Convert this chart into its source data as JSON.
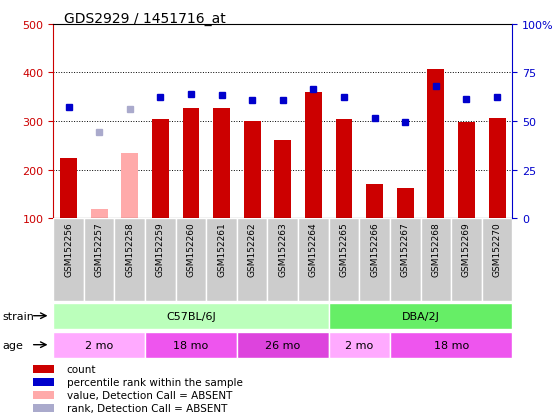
{
  "title": "GDS2929 / 1451716_at",
  "samples": [
    "GSM152256",
    "GSM152257",
    "GSM152258",
    "GSM152259",
    "GSM152260",
    "GSM152261",
    "GSM152262",
    "GSM152263",
    "GSM152264",
    "GSM152265",
    "GSM152266",
    "GSM152267",
    "GSM152268",
    "GSM152269",
    "GSM152270"
  ],
  "counts": [
    224,
    120,
    235,
    304,
    328,
    328,
    300,
    262,
    360,
    304,
    170,
    163,
    408,
    298,
    306
  ],
  "ranks": [
    330,
    278,
    325,
    350,
    356,
    353,
    343,
    343,
    367,
    350,
    306,
    298,
    372,
    345,
    350
  ],
  "absent": [
    false,
    true,
    true,
    false,
    false,
    false,
    false,
    false,
    false,
    false,
    false,
    false,
    false,
    false,
    false
  ],
  "ylim_left": [
    100,
    500
  ],
  "ylim_right": [
    0,
    100
  ],
  "yticks_left": [
    100,
    200,
    300,
    400,
    500
  ],
  "yticks_right": [
    0,
    25,
    50,
    75,
    100
  ],
  "bar_color": "#cc0000",
  "bar_absent_color": "#ffaaaa",
  "dot_color": "#0000cc",
  "dot_absent_color": "#aaaacc",
  "strain_groups": [
    {
      "label": "C57BL/6J",
      "start": 0,
      "end": 9,
      "color": "#bbffbb"
    },
    {
      "label": "DBA/2J",
      "start": 9,
      "end": 15,
      "color": "#66ee66"
    }
  ],
  "age_groups": [
    {
      "label": "2 mo",
      "start": 0,
      "end": 3,
      "color": "#ffaaff"
    },
    {
      "label": "18 mo",
      "start": 3,
      "end": 6,
      "color": "#ee55ee"
    },
    {
      "label": "26 mo",
      "start": 6,
      "end": 9,
      "color": "#dd44dd"
    },
    {
      "label": "2 mo",
      "start": 9,
      "end": 11,
      "color": "#ffaaff"
    },
    {
      "label": "18 mo",
      "start": 11,
      "end": 15,
      "color": "#ee55ee"
    }
  ],
  "legend_items": [
    {
      "label": "count",
      "color": "#cc0000"
    },
    {
      "label": "percentile rank within the sample",
      "color": "#0000cc"
    },
    {
      "label": "value, Detection Call = ABSENT",
      "color": "#ffaaaa"
    },
    {
      "label": "rank, Detection Call = ABSENT",
      "color": "#aaaacc"
    }
  ]
}
